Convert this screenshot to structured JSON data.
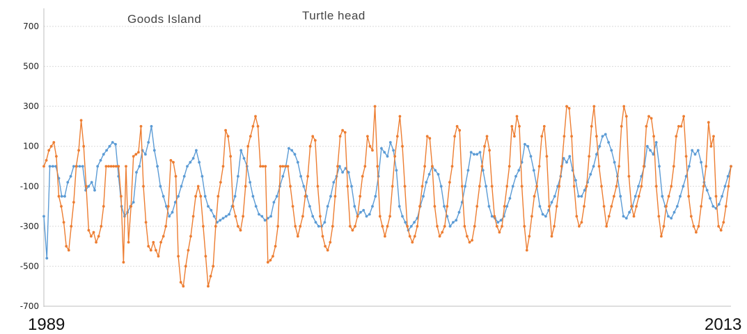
{
  "chart_data": {
    "type": "line",
    "title": "",
    "xlabel": "",
    "ylabel": "",
    "ylim": [
      -700,
      700
    ],
    "y_ticks": [
      "700",
      "500",
      "300",
      "100",
      "-100",
      "-300",
      "-500",
      "-700"
    ],
    "x_end_labels": [
      "1989",
      "2013"
    ],
    "grid": true,
    "legend_placement": "top-left",
    "series": [
      {
        "name": "Goods Island",
        "color": "#5b9bd5",
        "values": [
          -250,
          -460,
          0,
          0,
          0,
          -60,
          -150,
          -150,
          -80,
          -50,
          0,
          0,
          0,
          0,
          -120,
          -100,
          -80,
          -120,
          0,
          30,
          60,
          80,
          100,
          120,
          110,
          -50,
          -200,
          -250,
          -230,
          -200,
          -180,
          -30,
          0,
          80,
          60,
          120,
          200,
          80,
          0,
          -100,
          -150,
          -200,
          -250,
          -230,
          -180,
          -150,
          -100,
          -50,
          0,
          20,
          40,
          80,
          20,
          -50,
          -150,
          -200,
          -220,
          -250,
          -280,
          -270,
          -260,
          -250,
          -240,
          -200,
          -150,
          -50,
          80,
          40,
          0,
          -80,
          -150,
          -200,
          -240,
          -250,
          -270,
          -260,
          -250,
          -180,
          -150,
          -100,
          -50,
          0,
          90,
          80,
          60,
          20,
          -50,
          -100,
          -150,
          -200,
          -250,
          -280,
          -300,
          -300,
          -280,
          -200,
          -150,
          -80,
          -50,
          0,
          -30,
          -10,
          -30,
          -100,
          -200,
          -250,
          -230,
          -220,
          -250,
          -240,
          -200,
          -150,
          -50,
          90,
          70,
          50,
          120,
          80,
          -20,
          -200,
          -250,
          -280,
          -320,
          -300,
          -280,
          -260,
          -200,
          -150,
          -80,
          -40,
          0,
          -20,
          -40,
          -100,
          -200,
          -250,
          -300,
          -280,
          -270,
          -230,
          -180,
          -100,
          -20,
          70,
          60,
          60,
          70,
          -20,
          -100,
          -200,
          -250,
          -260,
          -280,
          -270,
          -250,
          -200,
          -160,
          -100,
          -50,
          -20,
          20,
          110,
          100,
          50,
          -20,
          -100,
          -200,
          -240,
          -250,
          -220,
          -180,
          -150,
          -100,
          -50,
          40,
          20,
          50,
          -20,
          -70,
          -150,
          -150,
          -120,
          -80,
          -40,
          0,
          60,
          100,
          150,
          160,
          120,
          80,
          20,
          -50,
          -150,
          -250,
          -260,
          -230,
          -200,
          -150,
          -100,
          -50,
          0,
          100,
          80,
          60,
          120,
          0,
          -150,
          -200,
          -250,
          -260,
          -230,
          -200,
          -150,
          -100,
          -50,
          0,
          80,
          60,
          80,
          20,
          -80,
          -120,
          -160,
          -200,
          -210,
          -190,
          -150,
          -100,
          -50,
          0
        ]
      },
      {
        "name": "Turtle head",
        "color": "#ed7d31",
        "values": [
          0,
          30,
          80,
          100,
          120,
          50,
          -150,
          -200,
          -280,
          -400,
          -420,
          -300,
          -180,
          0,
          80,
          230,
          100,
          -100,
          -320,
          -350,
          -330,
          -380,
          -350,
          -300,
          -200,
          0,
          0,
          0,
          0,
          0,
          0,
          -150,
          -480,
          0,
          -380,
          -200,
          50,
          60,
          70,
          200,
          -100,
          -280,
          -400,
          -420,
          -380,
          -420,
          -450,
          -380,
          -350,
          -300,
          -200,
          30,
          20,
          -50,
          -450,
          -580,
          -600,
          -500,
          -420,
          -350,
          -250,
          -150,
          -100,
          -150,
          -300,
          -450,
          -600,
          -550,
          -500,
          -300,
          -150,
          -80,
          0,
          180,
          150,
          50,
          -200,
          -250,
          -300,
          -320,
          -250,
          -100,
          100,
          150,
          200,
          250,
          200,
          0,
          0,
          0,
          -480,
          -470,
          -450,
          -400,
          -300,
          0,
          0,
          0,
          0,
          -100,
          -200,
          -300,
          -350,
          -300,
          -250,
          -150,
          -50,
          100,
          150,
          130,
          -100,
          -250,
          -350,
          -400,
          -420,
          -380,
          -300,
          -150,
          0,
          150,
          180,
          170,
          -100,
          -300,
          -320,
          -300,
          -250,
          -150,
          -50,
          0,
          150,
          100,
          80,
          300,
          0,
          -250,
          -300,
          -350,
          -300,
          -250,
          -100,
          50,
          150,
          250,
          100,
          -100,
          -300,
          -350,
          -380,
          -350,
          -300,
          -200,
          -100,
          0,
          150,
          140,
          0,
          -200,
          -300,
          -350,
          -330,
          -300,
          -200,
          -80,
          0,
          150,
          200,
          180,
          -100,
          -300,
          -350,
          -380,
          -370,
          -300,
          -200,
          -100,
          0,
          100,
          150,
          80,
          -100,
          -250,
          -300,
          -330,
          -300,
          -200,
          -100,
          0,
          200,
          150,
          250,
          200,
          -100,
          -300,
          -420,
          -350,
          -250,
          -150,
          -100,
          0,
          150,
          200,
          50,
          -200,
          -350,
          -300,
          -200,
          -100,
          0,
          150,
          300,
          290,
          150,
          -100,
          -250,
          -300,
          -280,
          -200,
          -100,
          50,
          200,
          300,
          150,
          0,
          -100,
          -200,
          -300,
          -250,
          -200,
          -150,
          -100,
          0,
          200,
          300,
          250,
          -50,
          -200,
          -250,
          -200,
          -150,
          -100,
          0,
          200,
          250,
          240,
          150,
          -100,
          -250,
          -350,
          -300,
          -200,
          -150,
          -100,
          0,
          150,
          200,
          200,
          250,
          50,
          -150,
          -250,
          -300,
          -330,
          -300,
          -200,
          -100,
          0,
          220,
          100,
          150,
          -150,
          -300,
          -320,
          -280,
          -200,
          -100,
          0
        ]
      }
    ]
  }
}
